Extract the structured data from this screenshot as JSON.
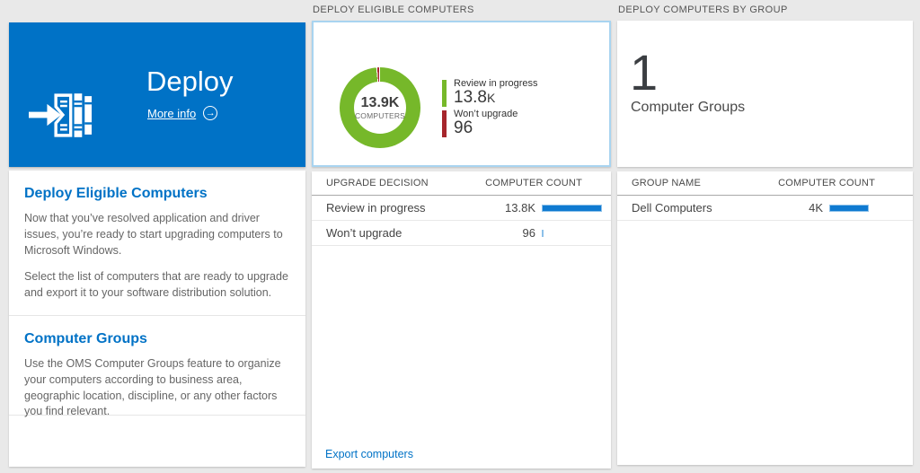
{
  "colors": {
    "accent_blue": "#0072c6",
    "bar_blue": "#0f7ad1",
    "donut_green": "#76b82a",
    "donut_red": "#a6262c",
    "selected_card_border": "#a9d4f0",
    "page_background": "#e9e9e9"
  },
  "hero": {
    "title": "Deploy",
    "more_info_label": "More info"
  },
  "left_panel": {
    "sections": [
      {
        "heading": "Deploy Eligible Computers",
        "paragraphs": [
          "Now that you’ve resolved application and driver issues, you’re ready to start upgrading computers to Microsoft Windows.",
          "Select the list of computers that are ready to upgrade and export it to your software distribution solution."
        ]
      },
      {
        "heading": "Computer Groups",
        "paragraphs": [
          "Use the OMS Computer Groups feature to organize your computers according to business area, geographic location, discipline, or any other factors you find relevant."
        ]
      }
    ]
  },
  "eligible": {
    "header": "DEPLOY ELIGIBLE COMPUTERS",
    "donut": {
      "type": "donut",
      "center_value": "13.9K",
      "center_label": "COMPUTERS",
      "segments": [
        {
          "label": "Review in progress",
          "value": "13.8",
          "suffix": "K",
          "count": 13800,
          "color": "#76b82a"
        },
        {
          "label": "Won’t upgrade",
          "value": "96",
          "suffix": "",
          "count": 96,
          "color": "#a6262c"
        }
      ]
    },
    "table": {
      "columns": [
        "UPGRADE DECISION",
        "COMPUTER COUNT"
      ],
      "rows": [
        {
          "label": "Review in progress",
          "count": "13.8K",
          "bar_pct": 100
        },
        {
          "label": "Won’t upgrade",
          "count": "96",
          "bar_pct": 3
        }
      ]
    },
    "export_label": "Export computers"
  },
  "groups": {
    "header": "DEPLOY COMPUTERS BY GROUP",
    "summary": {
      "value": "1",
      "label": "Computer Groups"
    },
    "table": {
      "columns": [
        "GROUP NAME",
        "COMPUTER COUNT"
      ],
      "rows": [
        {
          "label": "Dell Computers",
          "count": "4K",
          "bar_pct": 68
        }
      ]
    }
  }
}
